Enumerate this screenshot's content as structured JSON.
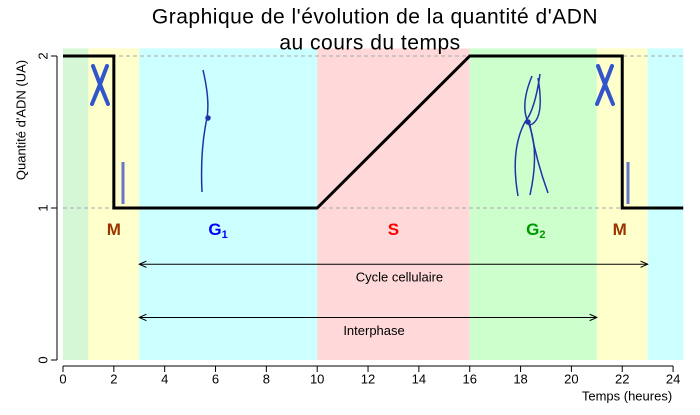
{
  "chart_data": {
    "type": "line",
    "title": [
      "Graphique de l'évolution de la quantité d'ADN",
      "au cours du temps"
    ],
    "x_label": "Temps (heures)",
    "y_label": "Quantité d'ADN (UA)",
    "xlim": [
      0,
      24.4
    ],
    "ylim": [
      0,
      2.05
    ],
    "xticks": [
      0,
      2,
      4,
      6,
      8,
      10,
      12,
      14,
      16,
      18,
      20,
      22,
      24
    ],
    "yticks": [
      0,
      1,
      2
    ],
    "grid": true,
    "x": [
      0,
      2,
      2,
      10,
      16,
      22,
      22,
      24.4
    ],
    "values": [
      2,
      2,
      1,
      1,
      2,
      2,
      1,
      1
    ],
    "color": "#000000",
    "bands": [
      {
        "start": 0,
        "end": 1,
        "color": "#d6f7d6"
      },
      {
        "start": 1,
        "end": 3,
        "color": "#ffffcc",
        "label": "M",
        "label_x": 2,
        "label_color": "#993300"
      },
      {
        "start": 3,
        "end": 10,
        "color": "#ccffff",
        "label": "G",
        "sub": "1",
        "label_x": 6.1,
        "label_color": "#0000ff"
      },
      {
        "start": 10,
        "end": 16,
        "color": "#ffd9d9",
        "label": "S",
        "label_x": 13,
        "label_color": "#ff0000"
      },
      {
        "start": 16,
        "end": 21,
        "color": "#ccffcc",
        "label": "G",
        "sub": "2",
        "label_x": 18.6,
        "label_color": "#009900"
      },
      {
        "start": 21,
        "end": 23,
        "color": "#ffffcc",
        "label": "M",
        "label_x": 21.9,
        "label_color": "#993300"
      },
      {
        "start": 23,
        "end": 24.4,
        "color": "#ccffff"
      }
    ],
    "phase_label_y": 0.85,
    "spans": [
      {
        "label": "Cycle cellulaire",
        "start": 3,
        "end": 23,
        "y": 0.63
      },
      {
        "label": "Interphase",
        "start": 3,
        "end": 21,
        "y": 0.28
      }
    ]
  }
}
